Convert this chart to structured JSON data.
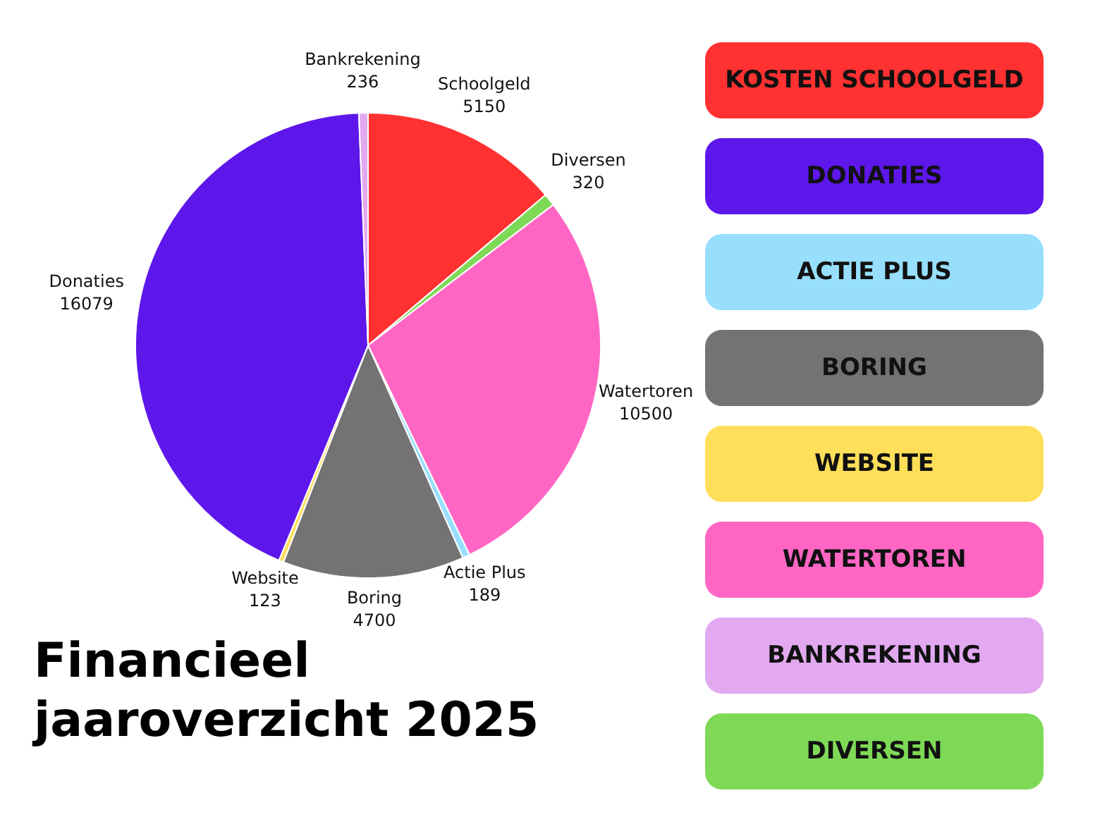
{
  "chart_data": {
    "type": "pie",
    "title": "Financieel jaaroverzicht 2025",
    "categories": [
      "Schoolgeld",
      "Diversen",
      "Watertoren",
      "Actie Plus",
      "Boring",
      "Website",
      "Donaties",
      "Bankrekening"
    ],
    "values": [
      5150,
      320,
      10500,
      189,
      4700,
      123,
      16079,
      236
    ],
    "colors": [
      "#ff3131",
      "#7ed957",
      "#ff66c4",
      "#97dffc",
      "#737373",
      "#ffde59",
      "#5e17eb",
      "#e2a9f1"
    ],
    "data_labels": true,
    "annotations": [
      "KOSTEN SCHOOLGELD",
      "DONATIES",
      "ACTIE PLUS",
      "BORING",
      "WEBSITE",
      "WATERTOREN",
      "BANKREKENING",
      "DIVERSEN"
    ]
  }
}
